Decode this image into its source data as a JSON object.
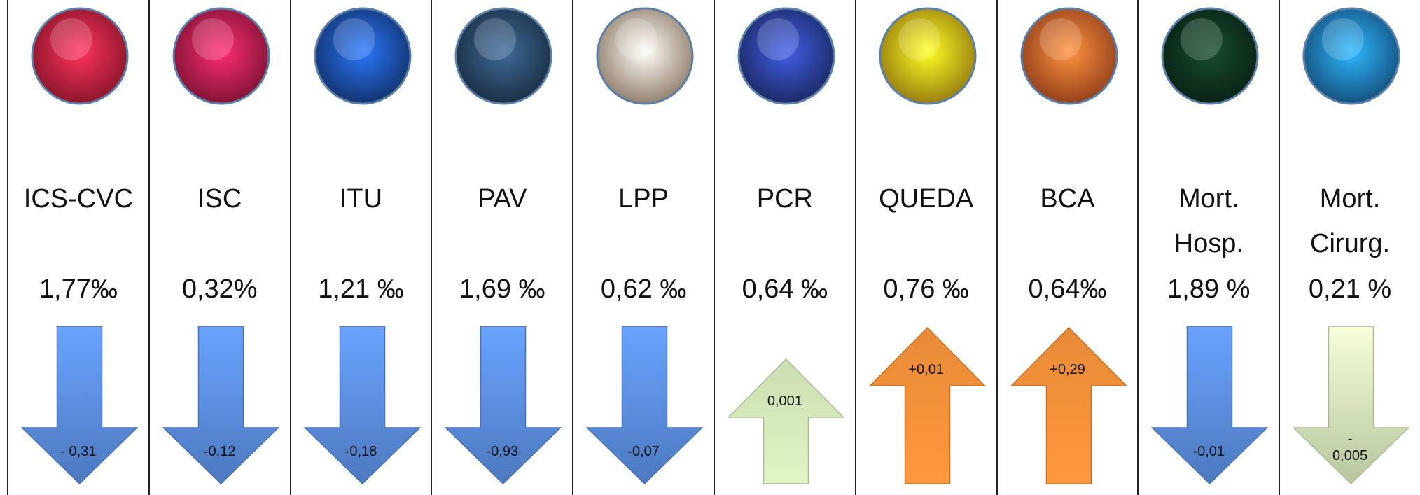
{
  "indicators": [
    {
      "label": [
        "ICS-CVC"
      ],
      "value": "1,77‰",
      "change": "- 0,31",
      "direction": "down",
      "color": "#5b8ee0",
      "icon_color": "#d9223f"
    },
    {
      "label": [
        "ISC"
      ],
      "value": "0,32%",
      "change": "-0,12",
      "direction": "down",
      "color": "#5b8ee0",
      "icon_color": "#c81e4e"
    },
    {
      "label": [
        "ITU"
      ],
      "value": "1,21 ‰",
      "change": "-0,18",
      "direction": "down",
      "color": "#5b8ee0",
      "icon_color": "#1c4fa8"
    },
    {
      "label": [
        "PAV"
      ],
      "value": "1,69 ‰",
      "change": "-0,93",
      "direction": "down",
      "color": "#5b8ee0",
      "icon_color": "#2a4766"
    },
    {
      "label": [
        "LPP"
      ],
      "value": "0,62 ‰",
      "change": "-0,07",
      "direction": "down",
      "color": "#5b8ee0",
      "icon_color": "#e8c6a6"
    },
    {
      "label": [
        "PCR"
      ],
      "value": "0,64 ‰",
      "change": "0,001",
      "direction": "up",
      "color": "#d6e9bb",
      "icon_color": "#2b3f9a"
    },
    {
      "label": [
        "QUEDA"
      ],
      "value": "0,76 ‰",
      "change": "+0,01",
      "direction": "up",
      "color": "#f3913a",
      "icon_color": "#f2c218"
    },
    {
      "label": [
        "BCA"
      ],
      "value": "0,64‰",
      "change": "+0,29",
      "direction": "up",
      "color": "#f3913a",
      "icon_color": "#e8622a"
    },
    {
      "label": [
        "Mort.",
        "Hosp."
      ],
      "value": "1,89 %",
      "change": "-0,01",
      "direction": "down",
      "color": "#5b8ee0",
      "icon_color": "#0f3320"
    },
    {
      "label": [
        "Mort.",
        "Cirurg."
      ],
      "value": "0,21 %",
      "change": "-\n0,005",
      "direction": "down",
      "color": "#d6e9bb",
      "icon_color": "#1f7bc4"
    }
  ]
}
